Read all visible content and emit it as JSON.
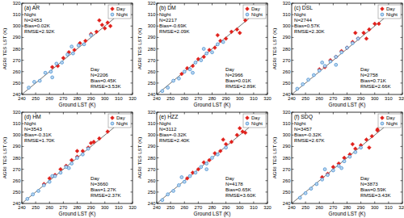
{
  "chart_data": [
    {
      "type": "scatter",
      "title": "(a) AR",
      "x_label": "Ground LST (K)",
      "y_label": "AGRI TES LST (K)",
      "xlim": [
        240,
        320
      ],
      "ylim": [
        240,
        320
      ],
      "xticks": [
        240,
        250,
        260,
        270,
        280,
        290,
        300,
        310,
        320
      ],
      "yticks": [
        240,
        250,
        260,
        270,
        280,
        290,
        300,
        310,
        320
      ],
      "legend": "upper right",
      "annotations": [
        [
          "Night",
          "N=2453",
          "Bias=0.02K",
          "RMSE=2.92K"
        ],
        [
          "Day",
          "N=2206",
          "Bias=0.45K",
          "RMSE=3.53K"
        ]
      ],
      "series": [
        {
          "name": "Day",
          "color": "#e0201b",
          "marker": "diamond",
          "x": [
            262,
            266,
            270,
            274,
            278,
            282,
            286,
            290,
            294,
            298,
            302,
            304,
            300,
            296
          ],
          "values": [
            264,
            265,
            272,
            277,
            279,
            285,
            287,
            293,
            295,
            301,
            303,
            300,
            298,
            305
          ]
        },
        {
          "name": "Night",
          "color": "#4a90d0",
          "marker": "circle",
          "x": [
            245,
            249,
            253,
            257,
            261,
            265,
            269,
            273,
            277,
            281,
            285,
            290,
            262,
            276
          ],
          "values": [
            246,
            251,
            252,
            259,
            260,
            267,
            268,
            275,
            276,
            283,
            284,
            292,
            255,
            282
          ]
        }
      ]
    },
    {
      "type": "scatter",
      "title": "(b) DM",
      "x_label": "Ground LST (K)",
      "y_label": "AGRI TES LST (K)",
      "xlim": [
        240,
        320
      ],
      "ylim": [
        240,
        320
      ],
      "xticks": [
        240,
        250,
        260,
        270,
        280,
        290,
        300,
        310,
        320
      ],
      "yticks": [
        240,
        250,
        260,
        270,
        280,
        290,
        300,
        310,
        320
      ],
      "legend": "upper right",
      "annotations": [
        [
          "Night",
          "N=2217",
          "Bias=-0.69K",
          "RMSE=2.09K"
        ],
        [
          "Day",
          "N=2966",
          "Bias=0.01K",
          "RMSE=2.89K"
        ]
      ],
      "series": [
        {
          "name": "Day",
          "color": "#e0201b",
          "marker": "diamond",
          "x": [
            258,
            262,
            266,
            270,
            274,
            278,
            282,
            286,
            290,
            294,
            298,
            304,
            284,
            300
          ],
          "values": [
            258,
            263,
            265,
            271,
            273,
            279,
            281,
            287,
            289,
            295,
            297,
            305,
            292,
            294
          ]
        },
        {
          "name": "Night",
          "color": "#4a90d0",
          "marker": "circle",
          "x": [
            244,
            248,
            252,
            256,
            260,
            264,
            268,
            272,
            276,
            280,
            284,
            288,
            266,
            274
          ],
          "values": [
            243,
            246,
            252,
            254,
            260,
            262,
            268,
            270,
            276,
            277,
            284,
            286,
            259,
            280
          ]
        }
      ]
    },
    {
      "type": "scatter",
      "title": "(c) DSL",
      "x_label": "Ground LST (K)",
      "y_label": "AGRI TES LST (K)",
      "xlim": [
        240,
        320
      ],
      "ylim": [
        240,
        320
      ],
      "xticks": [
        240,
        250,
        260,
        270,
        280,
        290,
        300,
        310,
        320
      ],
      "yticks": [
        240,
        250,
        260,
        270,
        280,
        290,
        300,
        310,
        320
      ],
      "legend": "upper right",
      "annotations": [
        [
          "Night",
          "N=2744",
          "Bias=0.57K",
          "RMSE=2.30K"
        ],
        [
          "Day",
          "N=2758",
          "Bias=0.71K",
          "RMSE=2.66K"
        ]
      ],
      "series": [
        {
          "name": "Day",
          "color": "#e0201b",
          "marker": "diamond",
          "x": [
            260,
            264,
            268,
            272,
            276,
            280,
            284,
            288,
            292,
            296,
            300,
            303,
            286,
            294
          ],
          "values": [
            262,
            264,
            270,
            273,
            278,
            281,
            286,
            289,
            294,
            297,
            302,
            302,
            294,
            289
          ]
        },
        {
          "name": "Night",
          "color": "#4a90d0",
          "marker": "circle",
          "x": [
            244,
            248,
            252,
            256,
            260,
            264,
            268,
            272,
            276,
            280,
            284,
            288,
            262,
            272
          ],
          "values": [
            245,
            249,
            253,
            257,
            261,
            265,
            269,
            273,
            277,
            281,
            285,
            289,
            268,
            266
          ]
        }
      ]
    },
    {
      "type": "scatter",
      "title": "(d) HM",
      "x_label": "Ground LST (K)",
      "y_label": "AGRI TES LST (K)",
      "xlim": [
        240,
        320
      ],
      "ylim": [
        240,
        320
      ],
      "xticks": [
        240,
        250,
        260,
        270,
        280,
        290,
        300,
        310,
        320
      ],
      "yticks": [
        240,
        250,
        260,
        270,
        280,
        290,
        300,
        310,
        320
      ],
      "legend": "upper right",
      "annotations": [
        [
          "Night",
          "N=3543",
          "Bias=-0.31K",
          "RMSE=1.70K"
        ],
        [
          "Day",
          "N=3660",
          "Bias=1.27K",
          "RMSE=2.37K"
        ]
      ],
      "series": [
        {
          "name": "Day",
          "color": "#e0201b",
          "marker": "diamond",
          "x": [
            256,
            260,
            264,
            268,
            272,
            276,
            280,
            284,
            288,
            292,
            296,
            302,
            280,
            290
          ],
          "values": [
            257,
            262,
            265,
            270,
            273,
            278,
            281,
            286,
            289,
            294,
            297,
            303,
            286,
            293
          ]
        },
        {
          "name": "Night",
          "color": "#4a90d0",
          "marker": "circle",
          "x": [
            244,
            248,
            252,
            256,
            260,
            264,
            268,
            272,
            276,
            280,
            284,
            288,
            262,
            274
          ],
          "values": [
            244,
            248,
            251,
            256,
            259,
            264,
            267,
            272,
            275,
            280,
            283,
            288,
            264,
            271
          ]
        }
      ]
    },
    {
      "type": "scatter",
      "title": "(e) HZZ",
      "x_label": "Ground LST (K)",
      "y_label": "AGRI TES LST (K)",
      "xlim": [
        240,
        320
      ],
      "ylim": [
        240,
        320
      ],
      "xticks": [
        240,
        250,
        260,
        270,
        280,
        290,
        300,
        310,
        320
      ],
      "yticks": [
        240,
        250,
        260,
        270,
        280,
        290,
        300,
        310,
        320
      ],
      "legend": "upper right",
      "annotations": [
        [
          "Night",
          "N=3112",
          "Bias=-0.32K",
          "RMSE=2.40K"
        ],
        [
          "Day",
          "N=4178",
          "Bias=0.65K",
          "RMSE=3.60K"
        ]
      ],
      "series": [
        {
          "name": "Day",
          "color": "#e0201b",
          "marker": "diamond",
          "x": [
            262,
            266,
            270,
            274,
            278,
            282,
            286,
            290,
            294,
            298,
            302,
            304,
            300,
            288
          ],
          "values": [
            262,
            267,
            270,
            276,
            278,
            284,
            286,
            292,
            294,
            300,
            303,
            302,
            306,
            296
          ]
        },
        {
          "name": "Night",
          "color": "#4a90d0",
          "marker": "circle",
          "x": [
            244,
            248,
            252,
            256,
            260,
            264,
            268,
            272,
            276,
            280,
            284,
            290,
            258,
            276
          ],
          "values": [
            243,
            248,
            251,
            256,
            259,
            264,
            267,
            272,
            275,
            280,
            283,
            289,
            263,
            270
          ]
        }
      ]
    },
    {
      "type": "scatter",
      "title": "(f) SDQ",
      "x_label": "Ground LST (K)",
      "y_label": "AGRI TES LST (K)",
      "xlim": [
        240,
        320
      ],
      "ylim": [
        240,
        320
      ],
      "xticks": [
        240,
        250,
        260,
        270,
        280,
        290,
        300,
        310,
        320
      ],
      "yticks": [
        240,
        250,
        260,
        270,
        280,
        290,
        300,
        310,
        320
      ],
      "legend": "upper right",
      "annotations": [
        [
          "Night",
          "N=3457",
          "Bias=-0.32K",
          "RMSE=2.67K"
        ],
        [
          "Day",
          "N=3873",
          "Bias=0.59K",
          "RMSE=3.43K"
        ]
      ],
      "series": [
        {
          "name": "Day",
          "color": "#e0201b",
          "marker": "diamond",
          "x": [
            262,
            266,
            270,
            274,
            278,
            282,
            286,
            290,
            294,
            298,
            302,
            302,
            284,
            296
          ],
          "values": [
            263,
            266,
            272,
            275,
            280,
            283,
            288,
            291,
            296,
            299,
            304,
            305,
            292,
            289
          ]
        },
        {
          "name": "Night",
          "color": "#4a90d0",
          "marker": "circle",
          "x": [
            246,
            250,
            254,
            258,
            262,
            266,
            270,
            274,
            278,
            282,
            286,
            290,
            264,
            276
          ],
          "values": [
            245,
            249,
            253,
            257,
            261,
            265,
            269,
            273,
            277,
            281,
            285,
            289,
            270,
            271
          ]
        }
      ]
    }
  ]
}
